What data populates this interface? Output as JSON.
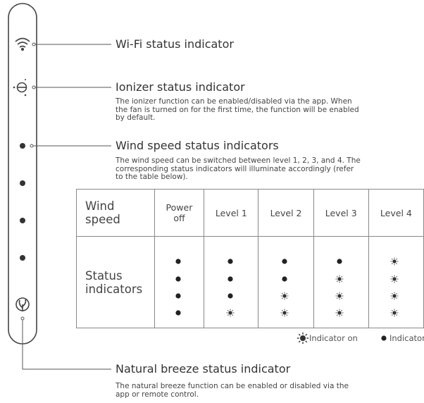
{
  "indicators": [
    {
      "label": "Wi-Fi status indicator"
    },
    {
      "label": "Ionizer status indicator",
      "description": [
        "The ionizer function can be enabled/disabled via the app. When",
        "the fan is turned on for the first time, the function will be enabled",
        "by default."
      ]
    },
    {
      "label": "Wind speed status indicators",
      "description": [
        "The wind speed can be switched between level 1, 2, 3, and 4. The",
        "corresponding status indicators will illuminate accordingly (refer",
        "to the table below)."
      ]
    },
    {
      "label": "Natural breeze status indicator",
      "description": [
        "The natural breeze function can be enabled or disabled via the",
        "app or remote control."
      ]
    }
  ],
  "table": {
    "header": [
      "Wind speed",
      "Power off",
      "Level 1",
      "Level 2",
      "Level 3",
      "Level 4"
    ],
    "row_label": "Status indicators"
  },
  "legend": {
    "on": "Indicator on",
    "off": "Indicator off"
  }
}
